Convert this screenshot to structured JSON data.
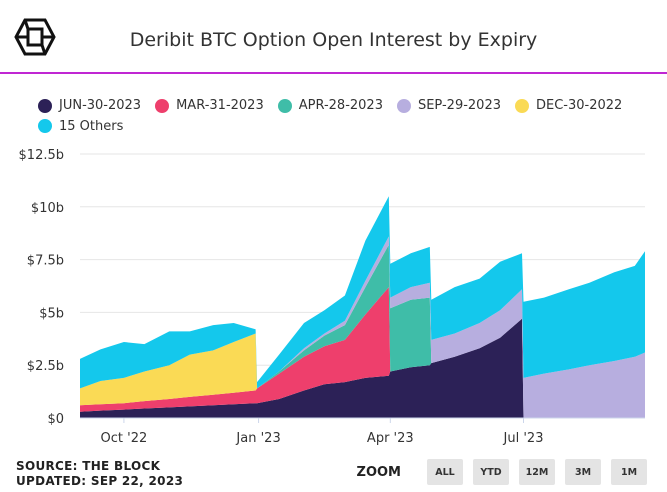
{
  "header": {
    "title": "Deribit BTC Option Open Interest by Expiry"
  },
  "footer": {
    "source": "SOURCE: THE BLOCK",
    "updated": "UPDATED: SEP 22, 2023"
  },
  "zoom": {
    "label": "ZOOM",
    "buttons": [
      "ALL",
      "YTD",
      "12M",
      "3M",
      "1M"
    ]
  },
  "colors": {
    "jun": "#2c2157",
    "mar": "#ee3f6c",
    "apr": "#3fbda8",
    "sep": "#b7aedf",
    "dec": "#fada55",
    "others": "#14c8ec",
    "accent": "#c026d3"
  },
  "chart_data": {
    "type": "area",
    "stacked": true,
    "title": "Deribit BTC Option Open Interest by Expiry",
    "ylim": [
      0,
      12.5
    ],
    "y_ticks": [
      "$0",
      "$2.5b",
      "$5b",
      "$7.5b",
      "$10b",
      "$12.5b"
    ],
    "x_ticks": [
      "Oct '22",
      "Jan '23",
      "Apr '23",
      "Jul '23"
    ],
    "x_tick_dates": [
      "2022-10-01",
      "2023-01-01",
      "2023-04-01",
      "2023-07-01"
    ],
    "legend_position": "top-left",
    "grid": "horizontal",
    "x": [
      "2022-09-01",
      "2022-09-15",
      "2022-10-01",
      "2022-10-15",
      "2022-11-01",
      "2022-11-15",
      "2022-12-01",
      "2022-12-15",
      "2022-12-30",
      "2022-12-31",
      "2023-01-15",
      "2023-02-01",
      "2023-02-15",
      "2023-03-01",
      "2023-03-15",
      "2023-03-31",
      "2023-04-01",
      "2023-04-15",
      "2023-04-28",
      "2023-04-29",
      "2023-05-15",
      "2023-06-01",
      "2023-06-15",
      "2023-06-30",
      "2023-07-01",
      "2023-07-15",
      "2023-08-01",
      "2023-08-15",
      "2023-09-01",
      "2023-09-15",
      "2023-09-22"
    ],
    "series": [
      {
        "name": "JUN-30-2023",
        "color": "#2c2157",
        "values": [
          0.3,
          0.35,
          0.4,
          0.45,
          0.5,
          0.55,
          0.6,
          0.65,
          0.7,
          0.7,
          0.9,
          1.3,
          1.6,
          1.7,
          1.9,
          2.0,
          2.2,
          2.4,
          2.5,
          2.6,
          2.9,
          3.3,
          3.8,
          4.7,
          0,
          0,
          0,
          0,
          0,
          0,
          0
        ]
      },
      {
        "name": "MAR-31-2023",
        "color": "#ee3f6c",
        "values": [
          0.3,
          0.3,
          0.3,
          0.35,
          0.4,
          0.45,
          0.5,
          0.55,
          0.6,
          0.7,
          1.2,
          1.6,
          1.8,
          2.0,
          3.0,
          4.2,
          0,
          0,
          0,
          0,
          0,
          0,
          0,
          0,
          0,
          0,
          0,
          0,
          0,
          0,
          0
        ]
      },
      {
        "name": "APR-28-2023",
        "color": "#3fbda8",
        "values": [
          0,
          0,
          0,
          0,
          0,
          0,
          0,
          0,
          0,
          0,
          0.1,
          0.3,
          0.5,
          0.7,
          1.3,
          2.0,
          3.0,
          3.2,
          3.2,
          0,
          0,
          0,
          0,
          0,
          0,
          0,
          0,
          0,
          0,
          0,
          0
        ]
      },
      {
        "name": "SEP-29-2023",
        "color": "#b7aedf",
        "values": [
          0,
          0,
          0,
          0,
          0,
          0,
          0,
          0,
          0,
          0,
          0,
          0.1,
          0.1,
          0.2,
          0.3,
          0.4,
          0.5,
          0.6,
          0.7,
          1.1,
          1.1,
          1.2,
          1.3,
          1.4,
          1.9,
          2.1,
          2.3,
          2.5,
          2.7,
          2.9,
          3.1
        ]
      },
      {
        "name": "DEC-30-2022",
        "color": "#fada55",
        "values": [
          0.8,
          1.1,
          1.2,
          1.4,
          1.6,
          2.0,
          2.1,
          2.4,
          2.7,
          0,
          0,
          0,
          0,
          0,
          0,
          0,
          0,
          0,
          0,
          0,
          0,
          0,
          0,
          0,
          0,
          0,
          0,
          0,
          0,
          0,
          0
        ]
      },
      {
        "name": "15 Others",
        "color": "#14c8ec",
        "values": [
          1.4,
          1.5,
          1.7,
          1.3,
          1.6,
          1.1,
          1.2,
          0.9,
          0.2,
          0.3,
          0.8,
          1.2,
          1.1,
          1.2,
          1.9,
          1.9,
          1.6,
          1.6,
          1.7,
          1.9,
          2.2,
          2.1,
          2.3,
          1.7,
          3.6,
          3.6,
          3.8,
          3.9,
          4.2,
          4.3,
          4.8
        ]
      }
    ]
  }
}
